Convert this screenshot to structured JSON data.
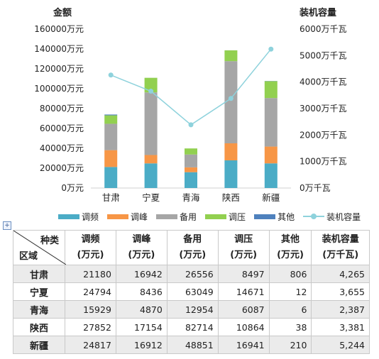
{
  "chart_data": {
    "type": "bar",
    "stacked": true,
    "left_axis_title": "金额",
    "right_axis_title": "装机容量",
    "left_ylim": [
      0,
      160000
    ],
    "right_ylim": [
      0,
      6000
    ],
    "left_ticks": [
      "0万元",
      "20000万元",
      "40000万元",
      "60000万元",
      "80000万元",
      "100000万元",
      "120000万元",
      "140000万元",
      "160000万元"
    ],
    "right_ticks": [
      "0万千瓦",
      "1000万千瓦",
      "2000万千瓦",
      "3000万千瓦",
      "4000万千瓦",
      "5000万千瓦",
      "6000万千瓦"
    ],
    "categories": [
      "甘肃",
      "宁夏",
      "青海",
      "陕西",
      "新疆"
    ],
    "series": [
      {
        "name": "调频",
        "color": "#4bacc6",
        "values": [
          21180,
          24794,
          15929,
          27852,
          24817
        ]
      },
      {
        "name": "调峰",
        "color": "#f79646",
        "values": [
          16942,
          8436,
          4870,
          17154,
          16912
        ]
      },
      {
        "name": "备用",
        "color": "#a6a6a6",
        "values": [
          26556,
          63049,
          12954,
          82714,
          48851
        ]
      },
      {
        "name": "调压",
        "color": "#92d050",
        "values": [
          8497,
          14671,
          6087,
          10864,
          16941
        ]
      },
      {
        "name": "其他",
        "color": "#4f81bd",
        "values": [
          806,
          12,
          6,
          38,
          210
        ]
      }
    ],
    "line_series": {
      "name": "装机容量",
      "color": "#8ed2dc",
      "axis": "right",
      "values": [
        4265,
        3655,
        2387,
        3381,
        5244
      ]
    },
    "legend_position": "bottom",
    "grid": false
  },
  "table": {
    "corner_top": "种类",
    "corner_bottom": "区域",
    "headers": [
      {
        "name": "调频",
        "unit": "(万元)"
      },
      {
        "name": "调峰",
        "unit": "(万元)"
      },
      {
        "name": "备用",
        "unit": "(万元)"
      },
      {
        "name": "调压",
        "unit": "(万元)"
      },
      {
        "name": "其他",
        "unit": "(万元)"
      },
      {
        "name": "装机容量",
        "unit": "(万千瓦)"
      }
    ],
    "rows": [
      {
        "region": "甘肃",
        "cells": [
          "21180",
          "16942",
          "26556",
          "8497",
          "806",
          "4,265"
        ]
      },
      {
        "region": "宁夏",
        "cells": [
          "24794",
          "8436",
          "63049",
          "14671",
          "12",
          "3,655"
        ]
      },
      {
        "region": "青海",
        "cells": [
          "15929",
          "4870",
          "12954",
          "6087",
          "6",
          "2,387"
        ]
      },
      {
        "region": "陕西",
        "cells": [
          "27852",
          "17154",
          "82714",
          "10864",
          "38",
          "3,381"
        ]
      },
      {
        "region": "新疆",
        "cells": [
          "24817",
          "16912",
          "48851",
          "16941",
          "210",
          "5,244"
        ]
      }
    ]
  }
}
